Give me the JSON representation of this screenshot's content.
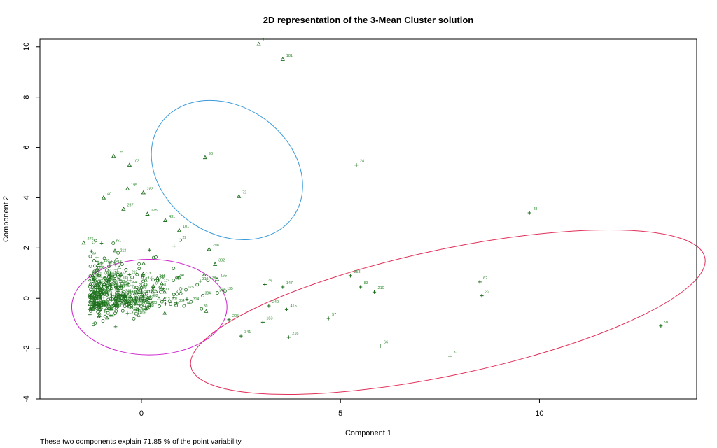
{
  "chart_data": {
    "type": "scatter",
    "title": "2D representation of the 3-Mean Cluster solution",
    "xlabel": "Component 1",
    "ylabel": "Component 2",
    "xlim": [
      -2.55,
      13.95
    ],
    "ylim": [
      -4,
      10.3
    ],
    "xticks": [
      0,
      5,
      10
    ],
    "yticks": [
      -4,
      -2,
      0,
      2,
      4,
      6,
      8,
      10
    ],
    "grid": false,
    "colors": {
      "points": "#1f6f1f",
      "labels": "#2e8b2e",
      "ellipse_triangle_cluster": "#3a9ad9",
      "ellipse_circle_cluster": "#cc22cc",
      "ellipse_plus_cluster": "#e0305a"
    },
    "clusters": [
      {
        "marker": "triangle",
        "ellipse": {
          "cx": 2.15,
          "cy": 5.1,
          "rx": 2.9,
          "ry": 5.85,
          "angle_deg": 55
        }
      },
      {
        "marker": "circle",
        "ellipse": {
          "cx": 0.2,
          "cy": -0.35,
          "rx": 1.95,
          "ry": 1.9,
          "angle_deg": 0
        }
      },
      {
        "marker": "plus",
        "ellipse": {
          "cx": 7.7,
          "cy": -0.55,
          "rx": 6.6,
          "ry": 2.5,
          "angle_deg": 12
        }
      }
    ],
    "labeled_points": [
      {
        "label": "181",
        "x": 3.55,
        "y": 9.5,
        "marker": "triangle"
      },
      {
        "label": "2",
        "x": 2.95,
        "y": 10.1,
        "marker": "triangle"
      },
      {
        "label": "125",
        "x": -0.7,
        "y": 5.65,
        "marker": "triangle"
      },
      {
        "label": "103",
        "x": -0.3,
        "y": 5.3,
        "marker": "triangle"
      },
      {
        "label": "96",
        "x": 1.6,
        "y": 5.6,
        "marker": "triangle"
      },
      {
        "label": "195",
        "x": -0.35,
        "y": 4.35,
        "marker": "triangle"
      },
      {
        "label": "283",
        "x": 0.05,
        "y": 4.2,
        "marker": "triangle"
      },
      {
        "label": "40",
        "x": -0.95,
        "y": 4.0,
        "marker": "triangle"
      },
      {
        "label": "72",
        "x": 2.45,
        "y": 4.05,
        "marker": "triangle"
      },
      {
        "label": "257",
        "x": -0.45,
        "y": 3.55,
        "marker": "triangle"
      },
      {
        "label": "125",
        "x": 0.15,
        "y": 3.35,
        "marker": "triangle"
      },
      {
        "label": "431",
        "x": 0.6,
        "y": 3.1,
        "marker": "triangle"
      },
      {
        "label": "101",
        "x": 0.95,
        "y": 2.7,
        "marker": "triangle"
      },
      {
        "label": "276",
        "x": -1.45,
        "y": 2.2,
        "marker": "triangle"
      },
      {
        "label": "298",
        "x": 1.7,
        "y": 1.95,
        "marker": "triangle"
      },
      {
        "label": "382",
        "x": 1.85,
        "y": 1.35,
        "marker": "triangle"
      },
      {
        "label": "165",
        "x": 1.9,
        "y": 0.75,
        "marker": "triangle"
      },
      {
        "label": "24",
        "x": 5.4,
        "y": 5.3,
        "marker": "plus"
      },
      {
        "label": "48",
        "x": 9.75,
        "y": 3.4,
        "marker": "plus"
      },
      {
        "label": "253",
        "x": 5.25,
        "y": 0.9,
        "marker": "plus"
      },
      {
        "label": "83",
        "x": 5.5,
        "y": 0.45,
        "marker": "plus"
      },
      {
        "label": "210",
        "x": 5.85,
        "y": 0.25,
        "marker": "plus"
      },
      {
        "label": "62",
        "x": 8.5,
        "y": 0.65,
        "marker": "plus"
      },
      {
        "label": "32",
        "x": 8.55,
        "y": 0.1,
        "marker": "plus"
      },
      {
        "label": "57",
        "x": 4.7,
        "y": -0.8,
        "marker": "plus"
      },
      {
        "label": "66",
        "x": 6.0,
        "y": -1.9,
        "marker": "plus"
      },
      {
        "label": "371",
        "x": 7.75,
        "y": -2.3,
        "marker": "plus"
      },
      {
        "label": "91",
        "x": 13.05,
        "y": -1.1,
        "marker": "plus"
      },
      {
        "label": "216",
        "x": 3.7,
        "y": -1.55,
        "marker": "plus"
      },
      {
        "label": "341",
        "x": 2.5,
        "y": -1.5,
        "marker": "plus"
      },
      {
        "label": "415",
        "x": 3.65,
        "y": -0.45,
        "marker": "plus"
      },
      {
        "label": "46",
        "x": 3.1,
        "y": 0.55,
        "marker": "plus"
      },
      {
        "label": "147",
        "x": 3.55,
        "y": 0.45,
        "marker": "plus"
      },
      {
        "label": "183",
        "x": 3.05,
        "y": -0.95,
        "marker": "plus"
      },
      {
        "label": "240",
        "x": 3.2,
        "y": -0.3,
        "marker": "plus"
      },
      {
        "label": "205",
        "x": 2.2,
        "y": -0.85,
        "marker": "plus"
      }
    ],
    "dense_cluster_summary": {
      "n_points": 420,
      "x_center": -0.85,
      "y_center": 0.0
    }
  },
  "footer": {
    "caption": "These two components explain 71.85 % of the point variability."
  }
}
